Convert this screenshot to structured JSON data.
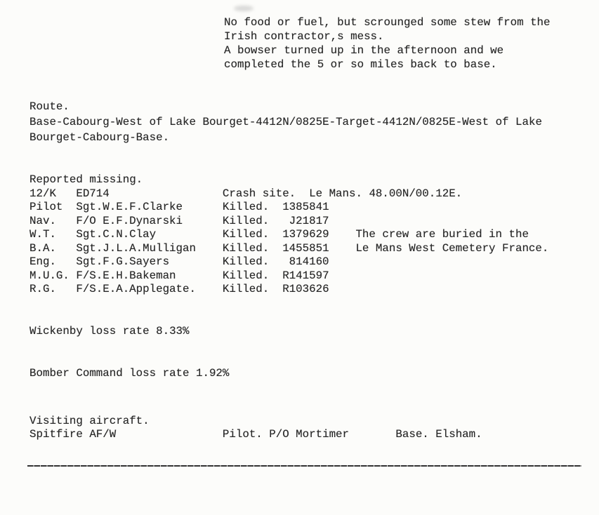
{
  "page": {
    "kind": "typewritten operations record page",
    "ink_color": "#262626",
    "paper_color": "#fcfcfa"
  },
  "note_block": {
    "lines": [
      "No food or fuel, but scrounged some stew from the",
      "Irish contractor,s mess.",
      "A bowser turned up in the afternoon and we",
      "completed the 5 or so miles back to base."
    ]
  },
  "route": {
    "heading": "Route.",
    "lines": [
      "Base-Cabourg-West of Lake Bourget-4412N/0825E-Target-4412N/0825E-West of Lake",
      "Bourget-Cabourg-Base."
    ]
  },
  "missing": {
    "heading": "Reported missing.",
    "aircraft": {
      "code": "12/K",
      "serial": "ED714",
      "crash_label": "Crash site.",
      "location": "Le Mans. 48.00N/00.12E."
    },
    "crew": [
      {
        "role": "Pilot",
        "name": "Sgt.W.E.F.Clarke",
        "status": "Killed.",
        "number": "1385841",
        "note": ""
      },
      {
        "role": "Nav.",
        "name": "F/O E.F.Dynarski",
        "status": "Killed.",
        "number": "J21817",
        "note": ""
      },
      {
        "role": "W.T.",
        "name": "Sgt.C.N.Clay",
        "status": "Killed.",
        "number": "1379629",
        "note": "The crew are buried in the"
      },
      {
        "role": "B.A.",
        "name": "Sgt.J.L.A.Mulligan",
        "status": "Killed.",
        "number": "1455851",
        "note": "Le Mans West Cemetery France."
      },
      {
        "role": "Eng.",
        "name": "Sgt.F.G.Sayers",
        "status": "Killed.",
        "number": "814160",
        "note": ""
      },
      {
        "role": "M.U.G.",
        "name": "F/S.E.H.Bakeman",
        "status": "Killed.",
        "number": "R141597",
        "note": ""
      },
      {
        "role": "R.G.",
        "name": "F/S.E.A.Applegate.",
        "status": "Killed.",
        "number": "R103626",
        "note": ""
      }
    ]
  },
  "loss_rates": {
    "wickenby": "Wickenby loss rate 8.33%",
    "bomber_command": "Bomber Command loss rate 1.92%"
  },
  "visiting": {
    "heading": "Visiting aircraft.",
    "aircraft": "Spitfire AF/W",
    "pilot": "Pilot. P/O Mortimer",
    "base": "Base. Elsham."
  }
}
